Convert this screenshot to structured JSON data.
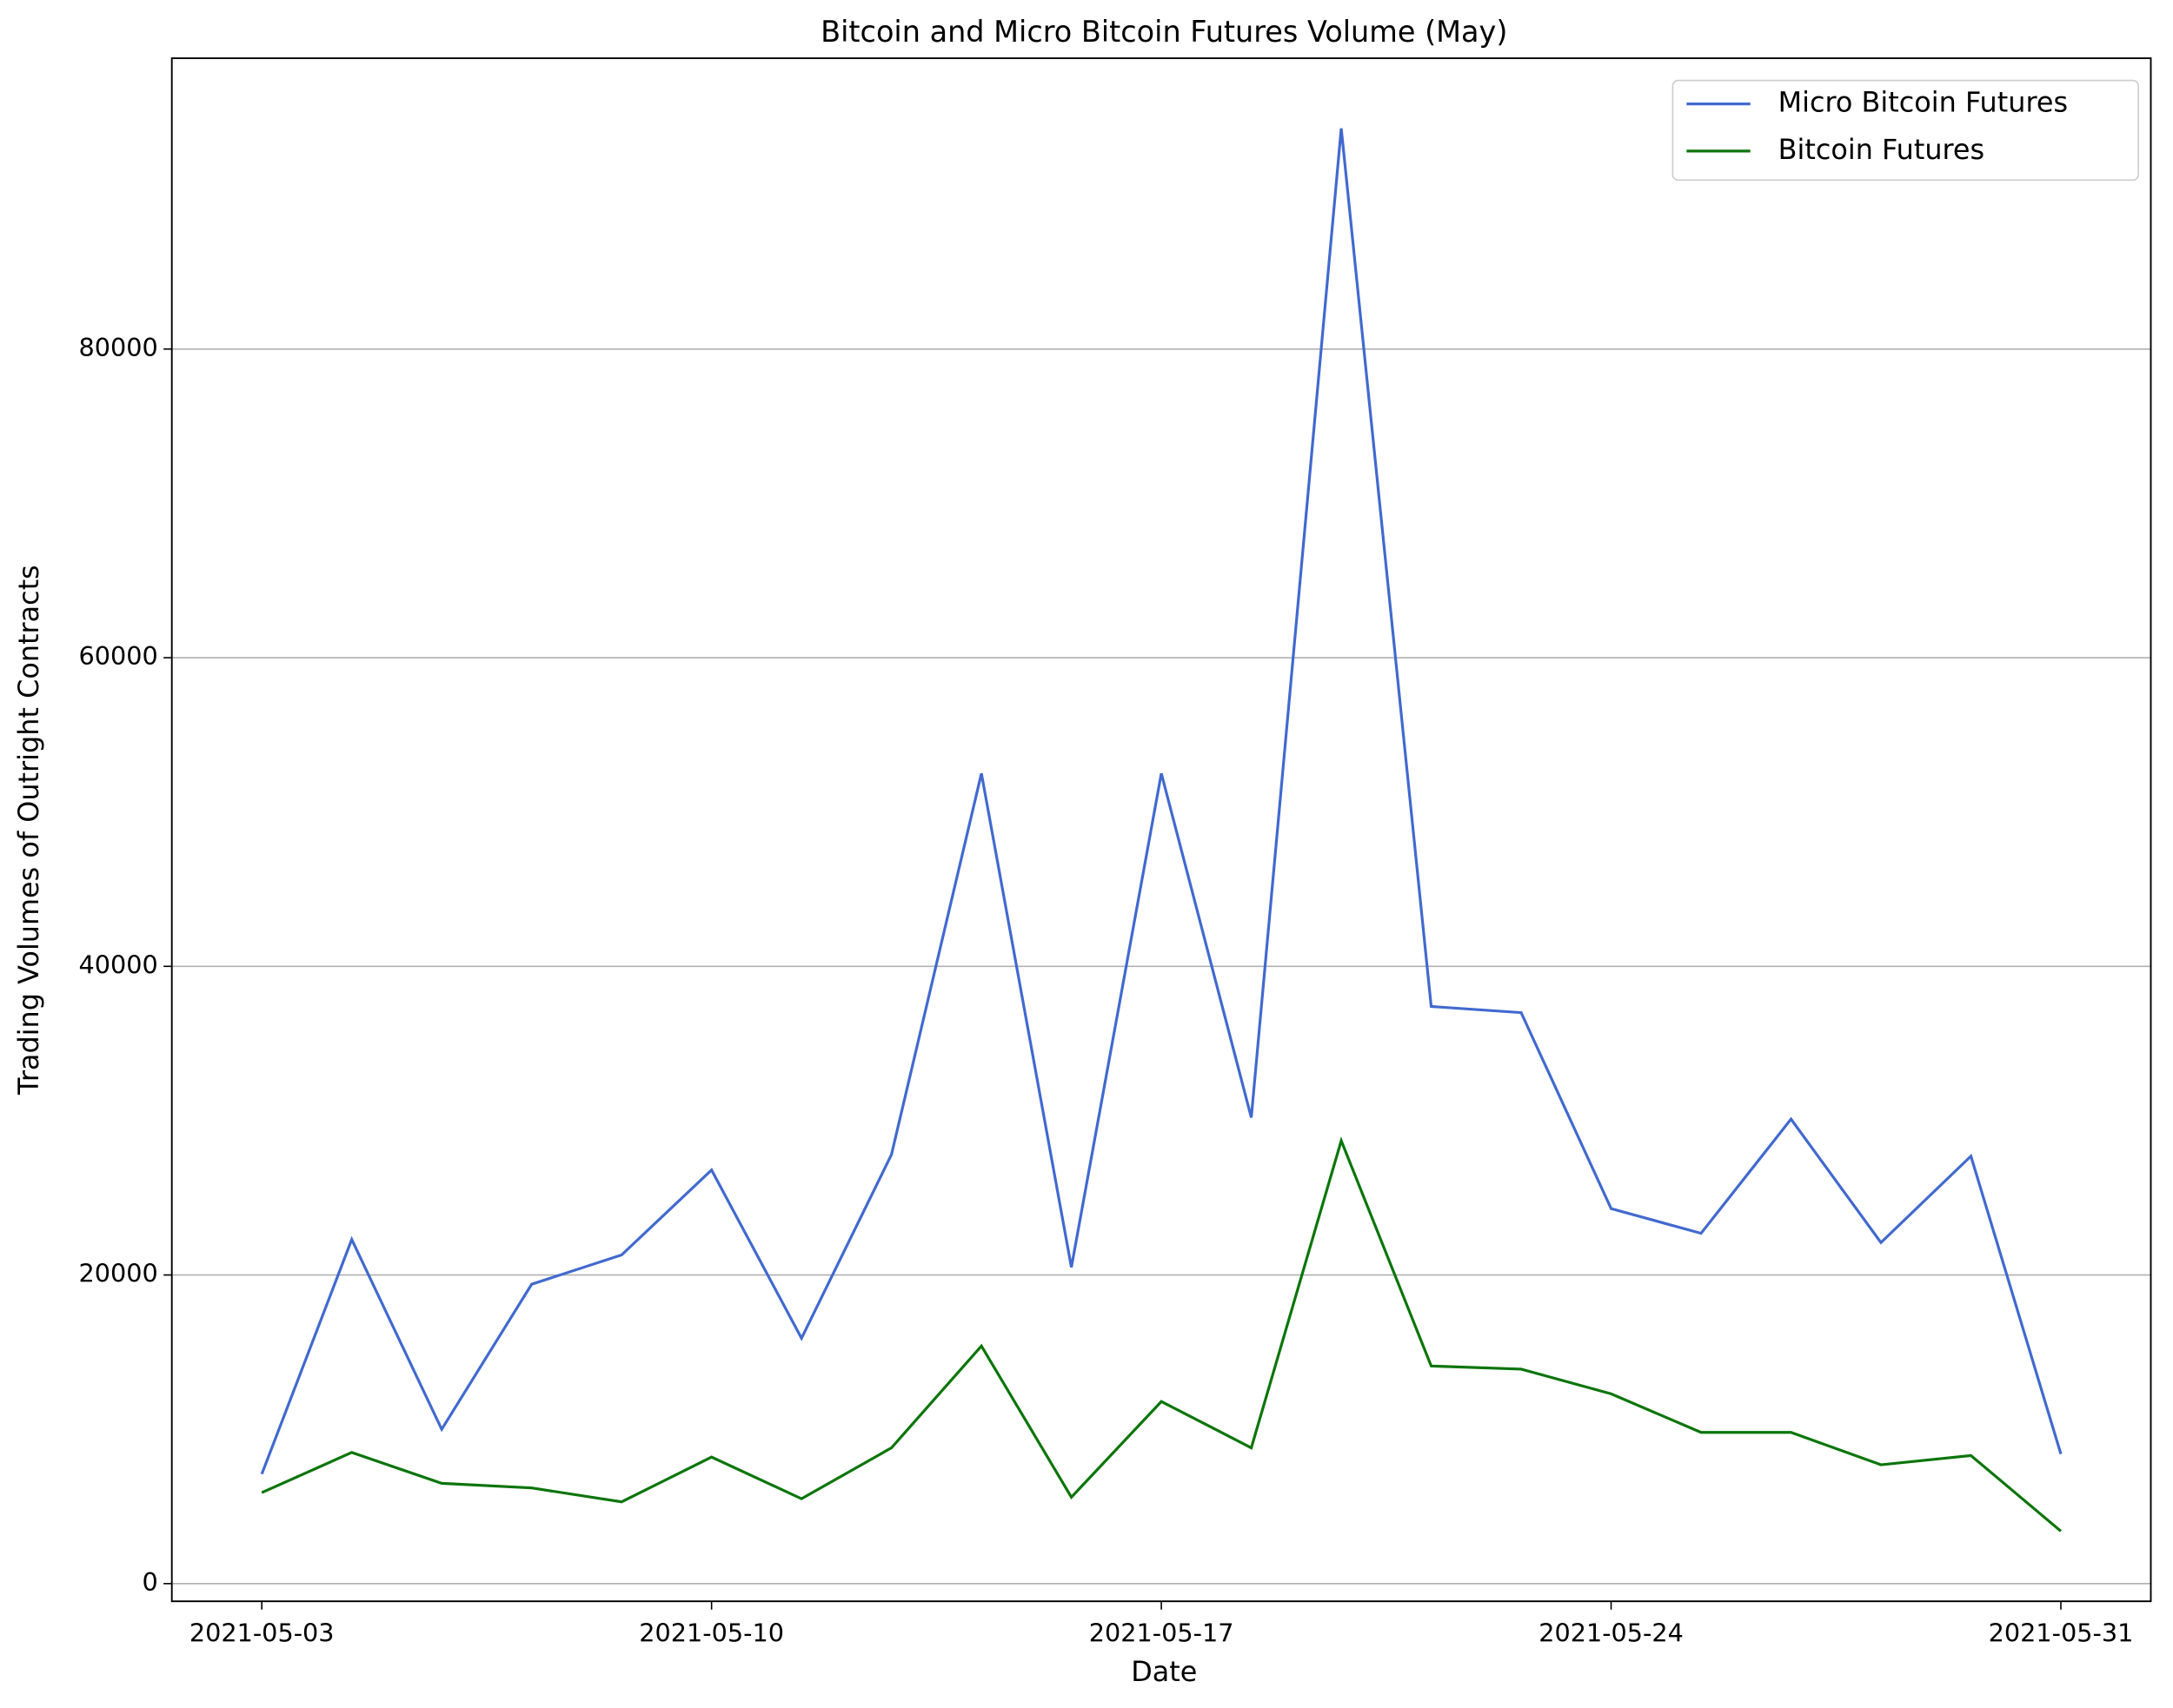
{
  "chart_data": {
    "type": "line",
    "title": "Bitcoin and Micro Bitcoin Futures Volume (May)",
    "x_label": "Date",
    "y_label": "Trading Volumes of Outright Contracts",
    "x": [
      "2021-05-03T00:00",
      "2021-05-04T09:36",
      "2021-05-05T19:12",
      "2021-05-07T04:48",
      "2021-05-08T14:24",
      "2021-05-10T00:00",
      "2021-05-11T09:36",
      "2021-05-12T19:12",
      "2021-05-14T04:48",
      "2021-05-15T14:24",
      "2021-05-17T00:00",
      "2021-05-18T09:36",
      "2021-05-19T19:12",
      "2021-05-21T04:48",
      "2021-05-22T14:24",
      "2021-05-24T00:00",
      "2021-05-25T09:36",
      "2021-05-26T19:12",
      "2021-05-28T04:48",
      "2021-05-29T14:24",
      "2021-05-31T00:00"
    ],
    "series": [
      {
        "name": "Micro Bitcoin Futures",
        "color": "#4169cf",
        "values": [
          7100,
          22300,
          10000,
          19400,
          21300,
          26800,
          15900,
          27800,
          52500,
          20500,
          52500,
          30200,
          94300,
          37400,
          37000,
          24300,
          22700,
          30100,
          22100,
          27700,
          8400
        ]
      },
      {
        "name": "Bitcoin Futures",
        "color": "#0a750a",
        "values": [
          5900,
          8500,
          6500,
          6200,
          5300,
          8200,
          5500,
          8800,
          15400,
          5600,
          11800,
          8800,
          28700,
          14100,
          13900,
          12300,
          9800,
          9800,
          7700,
          8300,
          3400
        ]
      }
    ],
    "xlim": [
      "2021-05-01T14:24",
      "2021-06-01T09:36"
    ],
    "xticks": [
      "2021-05-03",
      "2021-05-10",
      "2021-05-17",
      "2021-05-24",
      "2021-05-31"
    ],
    "ylim": [
      -1145,
      98845
    ],
    "yticks": [
      0,
      20000,
      40000,
      60000,
      80000
    ],
    "grid": "y",
    "legend": "upper right"
  }
}
